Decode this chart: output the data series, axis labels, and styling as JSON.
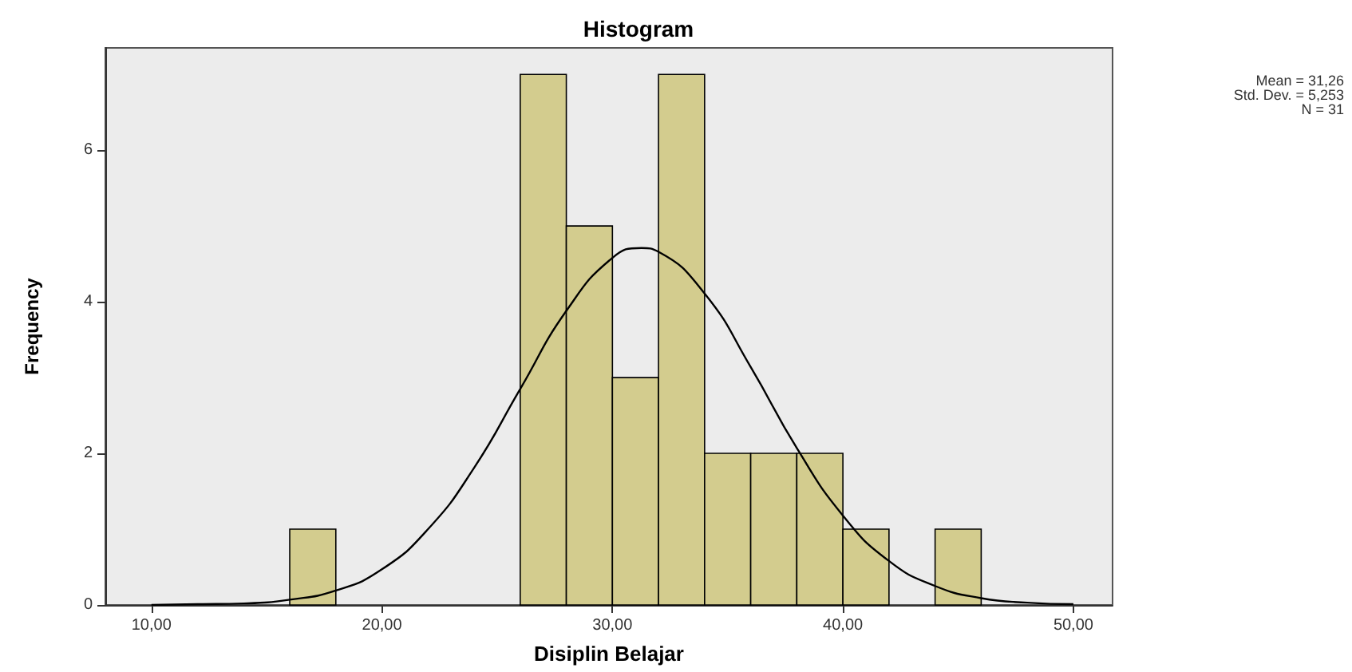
{
  "chart_data": {
    "type": "histogram",
    "title": "Histogram",
    "xlabel": "Disiplin Belajar",
    "ylabel": "Frequency",
    "annotations": [
      "Mean = 31,26",
      "Std. Dev. = 5,253",
      "N = 31"
    ],
    "series": [
      {
        "color": "#d3cc8e",
        "bins": [
          16,
          18,
          20,
          22,
          24,
          26,
          28,
          30,
          32,
          34,
          36,
          38,
          40,
          42,
          44,
          46
        ],
        "values": [
          1,
          0,
          0,
          0,
          0,
          7,
          5,
          3,
          7,
          2,
          2,
          2,
          1,
          0,
          1
        ]
      },
      {
        "type": "line",
        "color": "#000000",
        "x": [
          10,
          12,
          14,
          16,
          18,
          20,
          22,
          24,
          26,
          28,
          30,
          31.26,
          32,
          34,
          36,
          38,
          40,
          42,
          44,
          46,
          48,
          50
        ],
        "values": [
          0.0,
          0.01,
          0.02,
          0.07,
          0.19,
          0.47,
          1.0,
          1.81,
          2.85,
          3.88,
          4.58,
          4.71,
          4.66,
          4.11,
          3.14,
          2.07,
          1.18,
          0.58,
          0.25,
          0.09,
          0.03,
          0.01
        ]
      }
    ],
    "xlim": [
      8,
      51.7
    ],
    "xticks": [
      {
        "value": 10,
        "label": "10,00"
      },
      {
        "value": 20,
        "label": "20,00"
      },
      {
        "value": 30,
        "label": "30,00"
      },
      {
        "value": 40,
        "label": "40,00"
      },
      {
        "value": 50,
        "label": "50,00"
      }
    ],
    "ylim": [
      0,
      7.35
    ],
    "yticks": [
      0,
      2,
      4,
      6
    ],
    "grid": false,
    "marker": "none",
    "line_style": "solid"
  }
}
